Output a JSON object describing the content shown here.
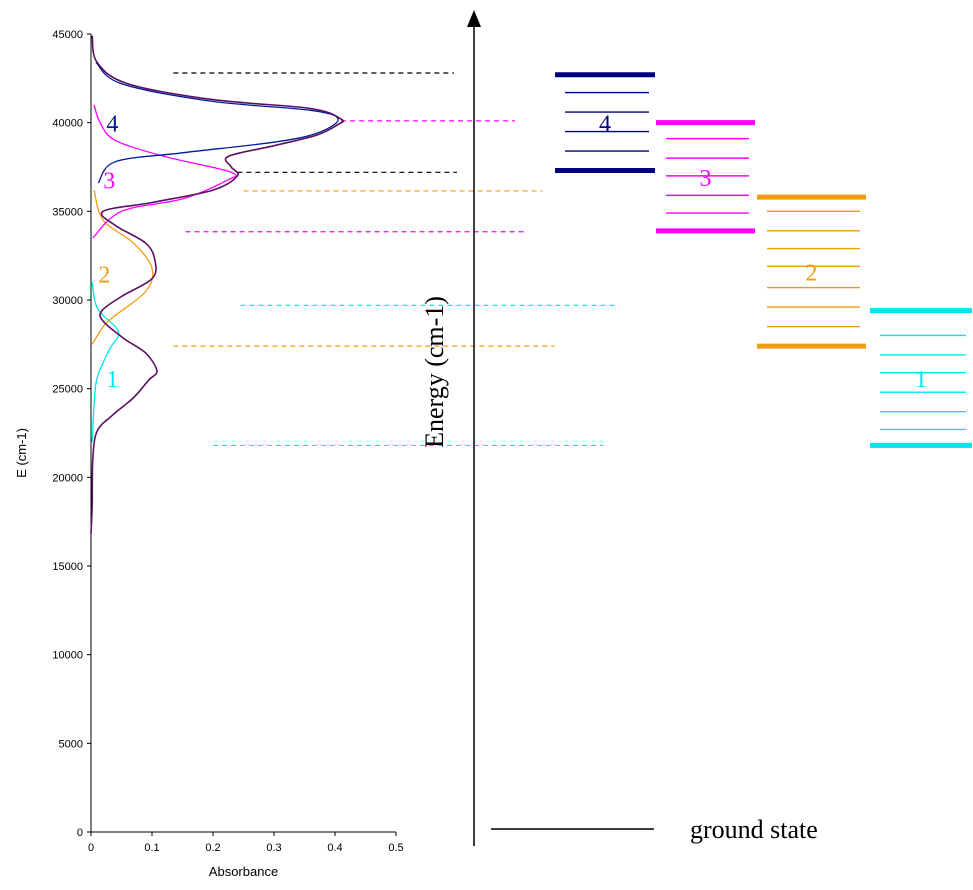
{
  "colors": {
    "band1": "#00e5ee",
    "band2": "#f39c12",
    "band3": "#ff00ff",
    "band4": "#001a99",
    "band4_dark": "#000080",
    "total": "#5a1060",
    "black": "#000000"
  },
  "chart_data": [
    {
      "type": "line",
      "orientation": "horizontal-absorbance",
      "xlabel": "Absorbance",
      "ylabel": "E (cm-1)",
      "xlim": [
        0,
        0.5
      ],
      "ylim": [
        0,
        45000
      ],
      "x_ticks": [
        "0",
        "0.1",
        "0.2",
        "0.3",
        "0.4",
        "0.5"
      ],
      "y_ticks": [
        "0",
        "5000",
        "10000",
        "15000",
        "20000",
        "25000",
        "30000",
        "35000",
        "40000",
        "45000"
      ],
      "band_labels": [
        {
          "text": "1",
          "color": "band1",
          "absorbance": 0.035,
          "energy": 25600
        },
        {
          "text": "2",
          "color": "band2",
          "absorbance": 0.022,
          "energy": 31500
        },
        {
          "text": "3",
          "color": "band3",
          "absorbance": 0.03,
          "energy": 36800
        },
        {
          "text": "4",
          "color": "band4",
          "absorbance": 0.035,
          "energy": 40000
        }
      ],
      "series": [
        {
          "color": "band1",
          "points": [
            [
              0.002,
              22000
            ],
            [
              0.005,
              24000
            ],
            [
              0.01,
              25600
            ],
            [
              0.03,
              27200
            ],
            [
              0.045,
              28200
            ],
            [
              0.015,
              29300
            ],
            [
              0.006,
              30000
            ],
            [
              0.002,
              31000
            ]
          ]
        },
        {
          "color": "band2",
          "points": [
            [
              0.002,
              27500
            ],
            [
              0.02,
              28500
            ],
            [
              0.035,
              29000
            ],
            [
              0.09,
              30500
            ],
            [
              0.1,
              31800
            ],
            [
              0.07,
              33200
            ],
            [
              0.02,
              34500
            ],
            [
              0.005,
              36200
            ]
          ]
        },
        {
          "color": "band3",
          "points": [
            [
              0.003,
              33500
            ],
            [
              0.05,
              35000
            ],
            [
              0.15,
              35700
            ],
            [
              0.22,
              36700
            ],
            [
              0.23,
              37200
            ],
            [
              0.12,
              38100
            ],
            [
              0.04,
              39000
            ],
            [
              0.015,
              40000
            ],
            [
              0.005,
              41000
            ]
          ]
        },
        {
          "color": "band4",
          "points": [
            [
              0.012,
              36600
            ],
            [
              0.04,
              37800
            ],
            [
              0.15,
              38300
            ],
            [
              0.3,
              38900
            ],
            [
              0.37,
              39400
            ],
            [
              0.405,
              40200
            ],
            [
              0.36,
              40700
            ],
            [
              0.2,
              41200
            ],
            [
              0.05,
              42200
            ],
            [
              0.008,
              43400
            ]
          ]
        },
        {
          "color": "total",
          "points": [
            [
              0.0,
              16800
            ],
            [
              0.002,
              18500
            ],
            [
              0.003,
              21000
            ],
            [
              0.01,
              22600
            ],
            [
              0.035,
              23500
            ],
            [
              0.07,
              24500
            ],
            [
              0.095,
              25500
            ],
            [
              0.108,
              26000
            ],
            [
              0.09,
              27000
            ],
            [
              0.055,
              27800
            ],
            [
              0.02,
              28800
            ],
            [
              0.018,
              29400
            ],
            [
              0.05,
              30200
            ],
            [
              0.1,
              31200
            ],
            [
              0.105,
              32200
            ],
            [
              0.09,
              33200
            ],
            [
              0.04,
              34200
            ],
            [
              0.02,
              35000
            ],
            [
              0.1,
              35500
            ],
            [
              0.2,
              36200
            ],
            [
              0.24,
              37000
            ],
            [
              0.23,
              37500
            ],
            [
              0.225,
              38100
            ],
            [
              0.3,
              38700
            ],
            [
              0.37,
              39300
            ],
            [
              0.405,
              39900
            ],
            [
              0.41,
              40200
            ],
            [
              0.36,
              40800
            ],
            [
              0.2,
              41300
            ],
            [
              0.06,
              42200
            ],
            [
              0.01,
              43400
            ],
            [
              0.002,
              44900
            ]
          ]
        }
      ],
      "transition_lines": [
        {
          "color": "black",
          "energy": 42800,
          "from": 0.135,
          "to": 0.595
        },
        {
          "color": "band3",
          "energy": 40100,
          "from": 0.41,
          "to": 0.695
        },
        {
          "color": "black",
          "energy": 37200,
          "from": 0.24,
          "to": 0.6
        },
        {
          "color": "band2",
          "energy": 36150,
          "from": 0.25,
          "to": 0.74
        },
        {
          "color": "band3",
          "energy": 33850,
          "from": 0.155,
          "to": 0.71
        },
        {
          "color": "band1",
          "energy": 29700,
          "from": 0.245,
          "to": 0.865
        },
        {
          "color": "band2",
          "energy": 27400,
          "from": 0.135,
          "to": 0.76
        },
        {
          "color": "band1",
          "energy": 21800,
          "from": 0.2,
          "to": 0.84
        }
      ]
    },
    {
      "type": "energy-level-diagram",
      "ylabel": "Energy (cm-1)",
      "ground_label": "ground state",
      "groups": [
        {
          "label": "1",
          "color": "band1",
          "thick": [
            21800,
            29400
          ],
          "thin": [
            22700,
            23700,
            24800,
            25900,
            26900,
            28000
          ]
        },
        {
          "label": "2",
          "color": "band2",
          "thick": [
            27400,
            35800
          ],
          "thin": [
            28500,
            29600,
            30700,
            31900,
            32900,
            33900,
            35000
          ]
        },
        {
          "label": "3",
          "color": "band3",
          "thick": [
            33900,
            40000
          ],
          "thin": [
            34900,
            35900,
            37000,
            38000,
            39100
          ]
        },
        {
          "label": "4",
          "color": "band4_dark",
          "thick": [
            37300,
            42700
          ],
          "thin": [
            38400,
            39500,
            40600,
            41700
          ]
        }
      ]
    }
  ]
}
